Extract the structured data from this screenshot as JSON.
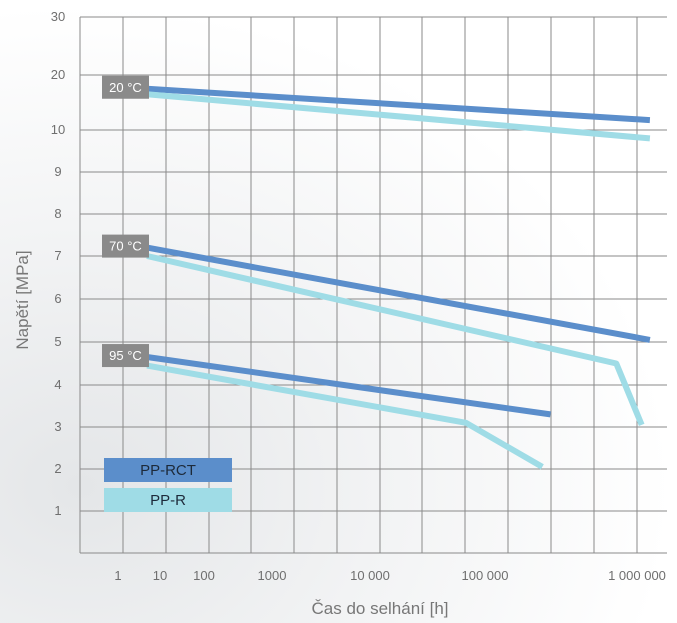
{
  "chart_data": {
    "type": "line",
    "xlabel": "Čas do selhání [h]",
    "ylabel": "Napětí [MPa]",
    "x_tick_labels": [
      "1",
      "10",
      "100",
      "1000",
      "10 000",
      "100 000",
      "1 000 000"
    ],
    "y_tick_labels": [
      "1",
      "2",
      "3",
      "4",
      "5",
      "6",
      "7",
      "8",
      "9",
      "10",
      "20",
      "30"
    ],
    "legend": [
      {
        "name": "PP-RCT",
        "color": "#5b8ecb"
      },
      {
        "name": "PP-R",
        "color": "#9fdce6"
      }
    ],
    "groups": [
      {
        "label": "20 °C",
        "series": [
          {
            "name": "PP-RCT",
            "color": "#5b8ecb",
            "points": [
              [
                1,
                17.5
              ],
              [
                1500000,
                11.8
              ]
            ]
          },
          {
            "name": "PP-R",
            "color": "#9fdce6",
            "points": [
              [
                1,
                16.5
              ],
              [
                1500000,
                9.8
              ]
            ]
          }
        ]
      },
      {
        "label": "70 °C",
        "series": [
          {
            "name": "PP-RCT",
            "color": "#5b8ecb",
            "points": [
              [
                1,
                7.2
              ],
              [
                1500000,
                5.05
              ]
            ]
          },
          {
            "name": "PP-R",
            "color": "#9fdce6",
            "points": [
              [
                1,
                7.0
              ],
              [
                600000,
                4.5
              ],
              [
                1200000,
                3.05
              ]
            ]
          }
        ]
      },
      {
        "label": "95 °C",
        "series": [
          {
            "name": "PP-RCT",
            "color": "#5b8ecb",
            "points": [
              [
                1,
                4.65
              ],
              [
                100000,
                3.3
              ]
            ]
          },
          {
            "name": "PP-R",
            "color": "#9fdce6",
            "points": [
              [
                1,
                4.45
              ],
              [
                10000,
                3.1
              ],
              [
                80000,
                2.05
              ]
            ]
          }
        ]
      }
    ],
    "grid": true
  }
}
